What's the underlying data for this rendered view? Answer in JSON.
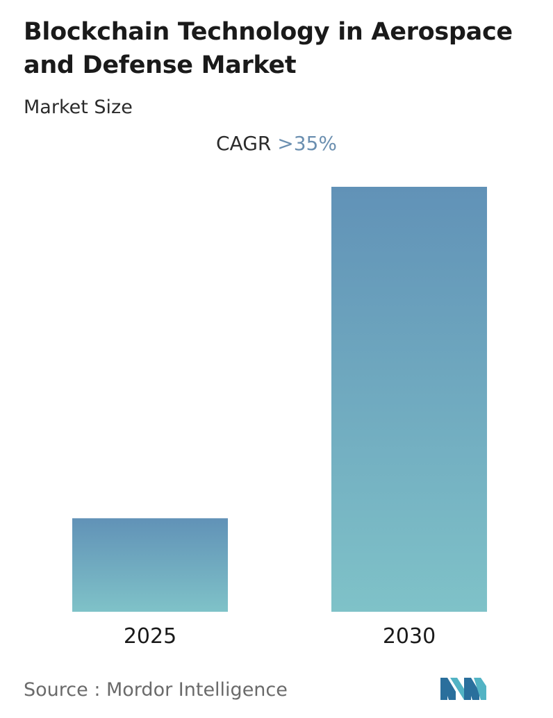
{
  "header": {
    "title": "Blockchain Technology in Aerospace and Defense Market",
    "subtitle": "Market Size"
  },
  "cagr": {
    "label": "CAGR",
    "value": ">35%"
  },
  "colors": {
    "bar_top": "#6192b7",
    "bar_bottom": "#7fc2c8",
    "cagr_value": "#6b8fb0"
  },
  "chart_data": {
    "type": "bar",
    "title": "Blockchain Technology in Aerospace and Defense Market",
    "subtitle": "Market Size",
    "categories": [
      "2025",
      "2030"
    ],
    "values": [
      22,
      100
    ],
    "ylim": [
      0,
      100
    ],
    "annotation": "CAGR >35%",
    "grid": false
  },
  "footer": {
    "source": "Source :  Mordor Intelligence",
    "logo": "mordor-intelligence-logo"
  }
}
